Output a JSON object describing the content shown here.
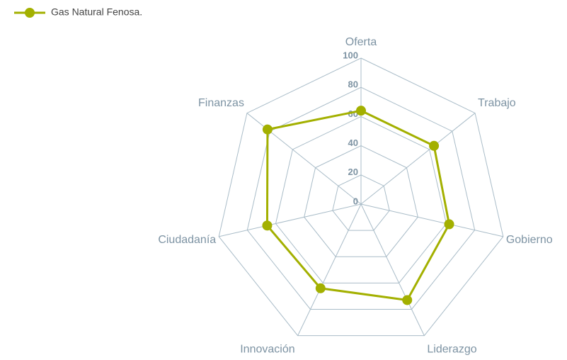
{
  "chart_data": {
    "type": "radar",
    "categories": [
      "Oferta",
      "Trabajo",
      "Gobierno",
      "Liderazgo",
      "Innovación",
      "Ciudadanía",
      "Finanzas"
    ],
    "series": [
      {
        "name": "Gas Natural Fenosa.",
        "color": "#a3b000",
        "values": [
          64,
          64,
          62,
          73,
          64,
          66,
          82
        ]
      }
    ],
    "ylim": [
      0,
      100
    ],
    "yticks": [
      0,
      20,
      40,
      60,
      80,
      100
    ],
    "grid": true,
    "legend": "top-left"
  }
}
